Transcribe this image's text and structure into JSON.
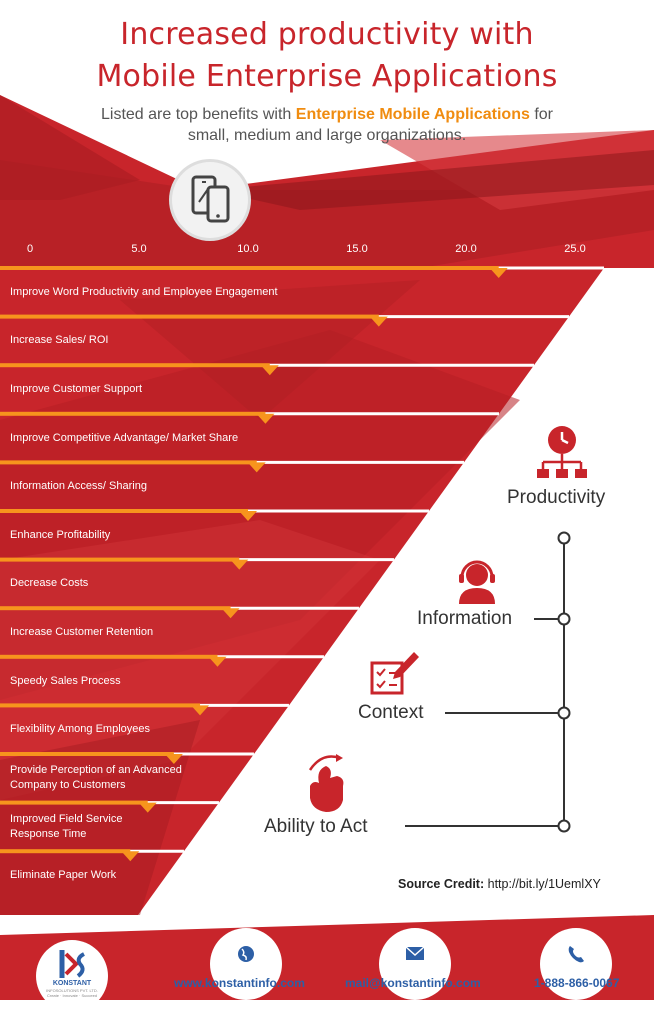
{
  "header": {
    "title_line1": "Increased productivity with",
    "title_line2": "Mobile Enterprise Applications",
    "subtitle_part1": "Listed are top benefits with ",
    "subtitle_highlight": "Enterprise Mobile Applications",
    "subtitle_part2": " for",
    "subtitle_line2": "small, medium and large organizations."
  },
  "colors": {
    "red": "#c8252b",
    "dark_red": "#9e1b20",
    "orange": "#f7941d",
    "title": "#c8252b",
    "link": "#2d5fa6"
  },
  "chart_data": {
    "type": "bar",
    "orientation": "horizontal",
    "xlim": [
      0,
      25
    ],
    "x_ticks": [
      "0",
      "5.0",
      "10.0",
      "15.0",
      "20.0",
      "25.0"
    ],
    "categories": [
      "Improve Word Productivity and Employee Engagement",
      "Increase Sales/ ROI",
      "Improve Customer Support",
      "Improve Competitive Advantage/ Market Share",
      "Information Access/ Sharing",
      "Enhance Profitability",
      "Decrease Costs",
      "Increase Customer Retention",
      "Speedy Sales Process",
      "Flexibility Among Employees",
      "Provide Perception of an Advanced Company to Customers",
      "Improved Field Service Response Time",
      "Eliminate Paper Work"
    ],
    "category_lines": [
      [
        "Improve Word Productivity and Employee Engagement"
      ],
      [
        "Increase Sales/ ROI"
      ],
      [
        "Improve Customer Support"
      ],
      [
        "Improve Competitive Advantage/ Market Share"
      ],
      [
        "Information Access/ Sharing"
      ],
      [
        "Enhance Profitability"
      ],
      [
        "Decrease Costs"
      ],
      [
        "Increase Customer Retention"
      ],
      [
        "Speedy Sales Process"
      ],
      [
        "Flexibility Among Employees"
      ],
      [
        "Provide Perception of an Advanced",
        "Company to Customers"
      ],
      [
        "Improved Field Service",
        "Response Time"
      ],
      [
        "Eliminate Paper Work"
      ]
    ],
    "values": [
      21.5,
      16,
      11,
      10.8,
      10.4,
      10,
      9.6,
      9.2,
      8.6,
      7.8,
      6.6,
      5.4,
      4.6
    ]
  },
  "side_panel": {
    "productivity": "Productivity",
    "information": "Information",
    "context": "Context",
    "ability": "Ability to Act",
    "icons": [
      "clock-hierarchy-icon",
      "headset-person-icon",
      "checklist-pencil-icon",
      "hand-tap-icon"
    ]
  },
  "credit": {
    "label": "Source Credit:",
    "url": "http://bit.ly/1UemlXY"
  },
  "footer": {
    "logo_text": "KONSTANT",
    "logo_sub": "INFOSOLUTIONS PVT. LTD.",
    "logo_tagline": "Create · Innovate · Succeed",
    "website": "www.konstantinfo.com",
    "email": "mail@konstantinfo.com",
    "phone": "1-888-866-0067",
    "icons": [
      "globe-icon",
      "mail-icon",
      "phone-icon"
    ]
  }
}
